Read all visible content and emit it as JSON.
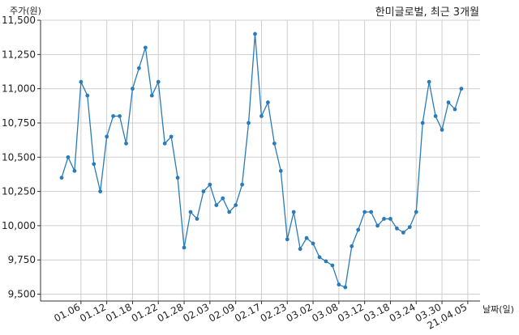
{
  "chart_data": {
    "type": "line",
    "title": "한미글로벌, 최근 3개월",
    "xlabel": "날짜(일)",
    "ylabel": "주가(원)",
    "ylim": [
      9450,
      11500
    ],
    "yticks": [
      9500,
      9750,
      10000,
      10250,
      10500,
      10750,
      11000,
      11250,
      11500
    ],
    "ytick_labels": [
      "9,500",
      "9,750",
      "10,000",
      "10,250",
      "10,500",
      "10,750",
      "11,000",
      "11,250",
      "11,500"
    ],
    "xtick_labels": [
      "01.06",
      "01.12",
      "01.18",
      "01.22",
      "01.28",
      "02.03",
      "02.09",
      "02.17",
      "02.23",
      "03.02",
      "03.08",
      "03.12",
      "03.18",
      "03.24",
      "03.30",
      "21.04.05"
    ],
    "xtick_positions": [
      3,
      7,
      11,
      15,
      19,
      23,
      27,
      31,
      35,
      39,
      43,
      47,
      51,
      55,
      59,
      63
    ],
    "grid": true,
    "line_color": "#2b7bb9",
    "series": [
      {
        "name": "",
        "values": [
          10350,
          10500,
          10400,
          11050,
          10950,
          10450,
          10250,
          10650,
          10800,
          10800,
          10600,
          11000,
          11150,
          11300,
          10950,
          11050,
          10600,
          10650,
          10350,
          9840,
          10100,
          10050,
          10250,
          10300,
          10150,
          10200,
          10100,
          10150,
          10300,
          10750,
          11400,
          10800,
          10900,
          10600,
          10400,
          9900,
          10100,
          9830,
          9910,
          9870,
          9770,
          9740,
          9710,
          9570,
          9550,
          9850,
          9970,
          10100,
          10100,
          10000,
          10050,
          10050,
          9980,
          9950,
          9990,
          10100,
          10750,
          11050,
          10800,
          10700,
          10900,
          10850,
          11000
        ]
      }
    ]
  }
}
